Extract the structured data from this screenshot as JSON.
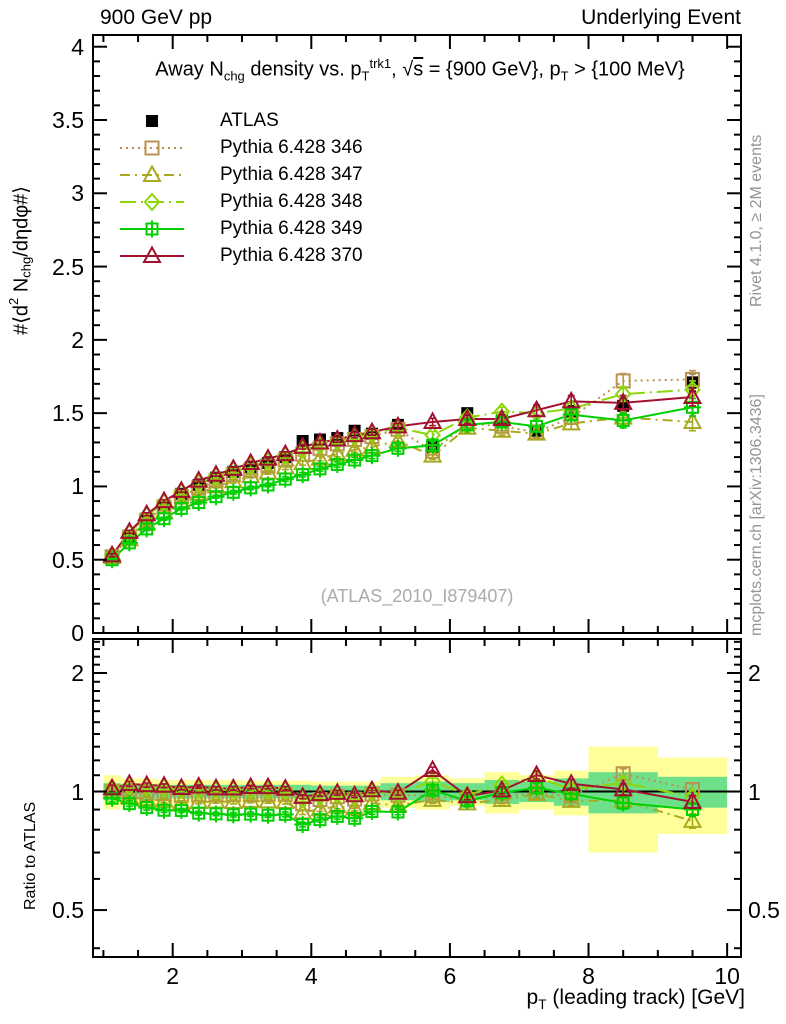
{
  "header": {
    "left": "900 GeV pp",
    "right": "Underlying Event"
  },
  "plot_title": {
    "segments": [
      {
        "t": "Away N"
      },
      {
        "t": "chg",
        "s": "sub"
      },
      {
        "t": " density vs. p"
      },
      {
        "t": "T",
        "s": "sub"
      },
      {
        "t": "trk1",
        "s": "sup"
      },
      {
        "t": ", "
      },
      {
        "t": "√"
      },
      {
        "t": "s",
        "s": "ovl"
      },
      {
        "t": " = {900 GeV}, p"
      },
      {
        "t": "T",
        "s": "sub"
      },
      {
        "t": " > {100 MeV}"
      }
    ]
  },
  "watermark": "(ATLAS_2010_I879407)",
  "side_notes": {
    "top": "Rivet 4.1.0, ≥ 2M events",
    "bottom": "mcplots.cern.ch [arXiv:1306.3436]"
  },
  "axes": {
    "main_y_label_segments": [
      {
        "t": "#⟨d"
      },
      {
        "t": "2",
        "s": "sup"
      },
      {
        "t": " N"
      },
      {
        "t": "chg",
        "s": "sub"
      },
      {
        "t": "/dηdφ#⟩"
      }
    ],
    "ratio_y_label": "Ratio to ATLAS",
    "x_label_segments": [
      {
        "t": "p"
      },
      {
        "t": "T",
        "s": "sub"
      },
      {
        "t": " (leading track) [GeV]"
      }
    ],
    "x_ticks": [
      2,
      4,
      6,
      8,
      10
    ],
    "main_y_ticks": [
      0,
      0.5,
      1,
      1.5,
      2,
      2.5,
      3,
      3.5,
      4
    ],
    "ratio_y_ticks": [
      0.5,
      1,
      2
    ],
    "ratio_y_minor_ticks": [
      0.4,
      0.6,
      0.7,
      0.8,
      0.9,
      1.1,
      1.2,
      1.3,
      1.4,
      1.5,
      1.6,
      1.7,
      1.8,
      1.9,
      2.1,
      2.2,
      2.3,
      2.4
    ],
    "x_range": [
      0.85,
      10.2
    ],
    "main_y_range": [
      0,
      4.08
    ],
    "ratio_y_range_log": [
      0.38,
      2.44
    ]
  },
  "chart_data": {
    "type": "line",
    "title": "Away Nchg density vs. pT trk1, sqrt(s) = {900 GeV}, pT > {100 MeV}",
    "xlabel": "pT (leading track) [GeV]",
    "ylabel": "#<d2 Nchg/detadphi#>",
    "ratio_ylabel": "Ratio to ATLAS",
    "x": [
      1.125,
      1.375,
      1.625,
      1.875,
      2.125,
      2.375,
      2.625,
      2.875,
      3.125,
      3.375,
      3.625,
      3.875,
      4.125,
      4.375,
      4.625,
      4.875,
      5.25,
      5.75,
      6.25,
      6.75,
      7.25,
      7.75,
      8.5,
      9.5
    ],
    "bin_edges": [
      1.0,
      1.25,
      1.5,
      1.75,
      2.0,
      2.25,
      2.5,
      2.75,
      3.0,
      3.25,
      3.5,
      3.75,
      4.0,
      4.25,
      4.5,
      4.75,
      5.0,
      5.5,
      6.0,
      6.5,
      7.0,
      7.5,
      8.0,
      9.0,
      10.0
    ],
    "series": [
      {
        "name": "ATLAS",
        "color": "#000000",
        "marker": "square-filled",
        "line": "none",
        "values": [
          0.52,
          0.66,
          0.78,
          0.87,
          0.95,
          1.01,
          1.06,
          1.1,
          1.13,
          1.16,
          1.2,
          1.31,
          1.32,
          1.33,
          1.38,
          1.36,
          1.42,
          1.27,
          1.5,
          1.45,
          1.38,
          1.51,
          1.55,
          1.71
        ]
      },
      {
        "name": "Pythia 6.428 346",
        "color": "#b9944f",
        "marker": "square-open",
        "line": "dotted",
        "values": [
          0.52,
          0.655,
          0.77,
          0.86,
          0.93,
          0.99,
          1.04,
          1.08,
          1.11,
          1.14,
          1.18,
          1.22,
          1.26,
          1.29,
          1.32,
          1.34,
          1.39,
          1.24,
          1.43,
          1.41,
          1.37,
          1.47,
          1.72,
          1.73
        ]
      },
      {
        "name": "Pythia 6.428 347",
        "color": "#a9a921",
        "marker": "triangle-open",
        "line": "dashdot",
        "values": [
          0.52,
          0.64,
          0.745,
          0.825,
          0.89,
          0.95,
          1.0,
          1.035,
          1.07,
          1.095,
          1.13,
          1.16,
          1.19,
          1.22,
          1.25,
          1.27,
          1.31,
          1.21,
          1.4,
          1.38,
          1.36,
          1.43,
          1.47,
          1.44
        ]
      },
      {
        "name": "Pythia 6.428 348",
        "color": "#8cd60a",
        "marker": "diamond-open",
        "line": "dashdot-long",
        "values": [
          0.53,
          0.68,
          0.8,
          0.89,
          0.96,
          1.02,
          1.07,
          1.11,
          1.14,
          1.17,
          1.21,
          1.25,
          1.28,
          1.31,
          1.34,
          1.36,
          1.4,
          1.35,
          1.47,
          1.51,
          1.5,
          1.53,
          1.63,
          1.66
        ]
      },
      {
        "name": "Pythia 6.428 349",
        "color": "#00cf00",
        "marker": "boxplus-open",
        "line": "solid",
        "values": [
          0.5,
          0.615,
          0.71,
          0.78,
          0.85,
          0.89,
          0.93,
          0.96,
          0.99,
          1.01,
          1.05,
          1.08,
          1.12,
          1.15,
          1.18,
          1.21,
          1.26,
          1.28,
          1.42,
          1.44,
          1.41,
          1.49,
          1.45,
          1.54
        ]
      },
      {
        "name": "Pythia 6.428 370",
        "color": "#a2112e",
        "marker": "triangle-open",
        "line": "solid",
        "values": [
          0.53,
          0.69,
          0.81,
          0.9,
          0.97,
          1.04,
          1.08,
          1.12,
          1.16,
          1.19,
          1.22,
          1.27,
          1.3,
          1.32,
          1.35,
          1.37,
          1.41,
          1.44,
          1.46,
          1.46,
          1.52,
          1.58,
          1.57,
          1.61
        ]
      }
    ],
    "errors": [
      0.01,
      0.01,
      0.01,
      0.01,
      0.01,
      0.01,
      0.01,
      0.012,
      0.012,
      0.012,
      0.015,
      0.015,
      0.015,
      0.018,
      0.018,
      0.02,
      0.02,
      0.025,
      0.03,
      0.03,
      0.035,
      0.04,
      0.05,
      0.06
    ],
    "ratio_reference": 1,
    "ratio_bands": {
      "yellow": {
        "color": "#ffff99",
        "half_widths": [
          0.1,
          0.08,
          0.08,
          0.07,
          0.07,
          0.07,
          0.07,
          0.07,
          0.065,
          0.065,
          0.065,
          0.065,
          0.06,
          0.06,
          0.06,
          0.06,
          0.09,
          0.1,
          0.08,
          0.12,
          0.1,
          0.13,
          0.3,
          0.22
        ]
      },
      "green": {
        "color": "#6ee08a",
        "half_widths": [
          0.05,
          0.045,
          0.045,
          0.04,
          0.04,
          0.04,
          0.04,
          0.04,
          0.04,
          0.04,
          0.04,
          0.04,
          0.035,
          0.035,
          0.035,
          0.035,
          0.05,
          0.06,
          0.05,
          0.07,
          0.06,
          0.08,
          0.12,
          0.09
        ]
      }
    },
    "legend_position": "top-left",
    "grid": false
  }
}
